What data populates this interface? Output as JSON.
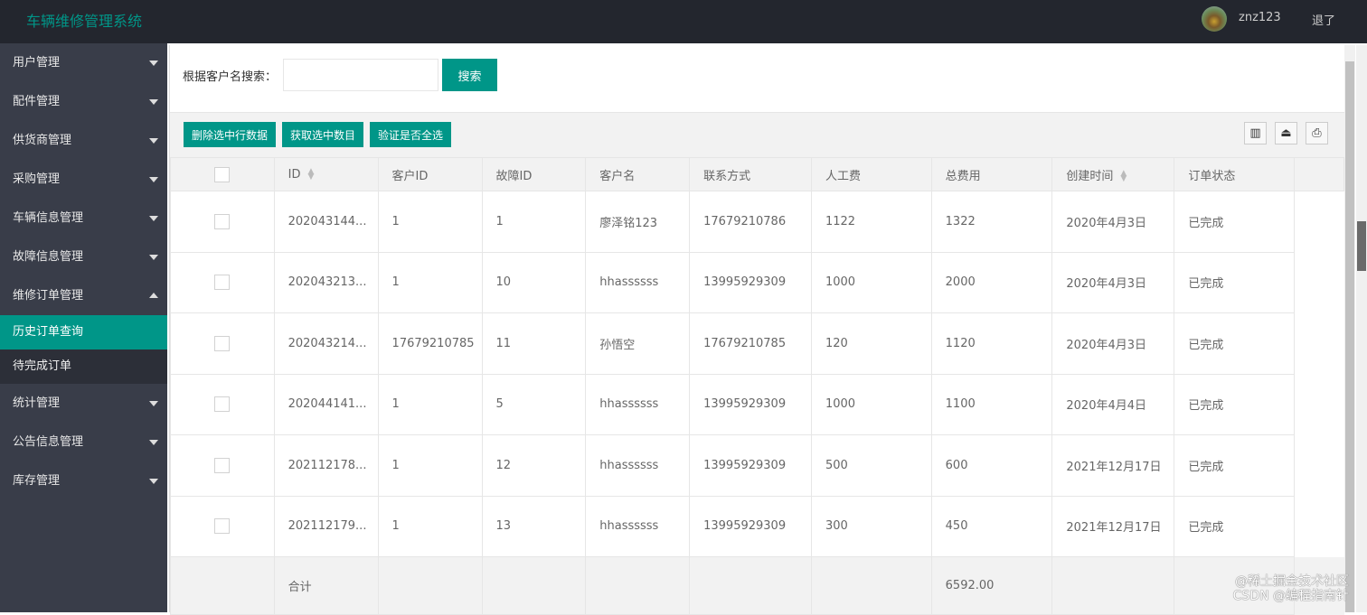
{
  "app": {
    "title": "车辆维修管理系统",
    "user": "znz123",
    "logout": "退了"
  },
  "sidebar": {
    "items": [
      {
        "label": "用户管理",
        "expanded": false
      },
      {
        "label": "配件管理",
        "expanded": false
      },
      {
        "label": "供货商管理",
        "expanded": false
      },
      {
        "label": "采购管理",
        "expanded": false
      },
      {
        "label": "车辆信息管理",
        "expanded": false
      },
      {
        "label": "故障信息管理",
        "expanded": false
      },
      {
        "label": "维修订单管理",
        "expanded": true,
        "children": [
          "历史订单查询",
          "待完成订单"
        ]
      },
      {
        "label": "统计管理",
        "expanded": false
      },
      {
        "label": "公告信息管理",
        "expanded": false
      },
      {
        "label": "库存管理",
        "expanded": false
      }
    ],
    "active": "历史订单查询"
  },
  "search": {
    "label": "根据客户名搜索：",
    "value": "",
    "button": "搜索"
  },
  "toolbar": {
    "buttons": [
      "删除选中行数据",
      "获取选中数目",
      "验证是否全选"
    ],
    "icons": [
      "columns-icon",
      "export-icon",
      "print-icon"
    ]
  },
  "table": {
    "headers": [
      "ID",
      "客户ID",
      "故障ID",
      "客户名",
      "联系方式",
      "人工费",
      "总费用",
      "创建时间",
      "订单状态"
    ],
    "rows": [
      [
        "202043144...",
        "1",
        "1",
        "廖泽铭123",
        "17679210786",
        "1122",
        "1322",
        "2020年4月3日",
        "已完成"
      ],
      [
        "202043213...",
        "1",
        "10",
        "hhassssss",
        "13995929309",
        "1000",
        "2000",
        "2020年4月3日",
        "已完成"
      ],
      [
        "202043214...",
        "17679210785",
        "11",
        "孙悟空",
        "17679210785",
        "120",
        "1120",
        "2020年4月3日",
        "已完成"
      ],
      [
        "202044141...",
        "1",
        "5",
        "hhassssss",
        "13995929309",
        "1000",
        "1100",
        "2020年4月4日",
        "已完成"
      ],
      [
        "202112178...",
        "1",
        "12",
        "hhassssss",
        "13995929309",
        "500",
        "600",
        "2021年12月17日",
        "已完成"
      ],
      [
        "202112179...",
        "1",
        "13",
        "hhassssss",
        "13995929309",
        "300",
        "450",
        "2021年12月17日",
        "已完成"
      ]
    ],
    "total_label": "合计",
    "total_value": "6592.00"
  },
  "watermark": [
    "@稀土掘金技术社区",
    "CSDN @编程指南针"
  ],
  "colors": {
    "accent": "#009688",
    "topbar": "#23262e",
    "sidebar": "#393d49"
  }
}
